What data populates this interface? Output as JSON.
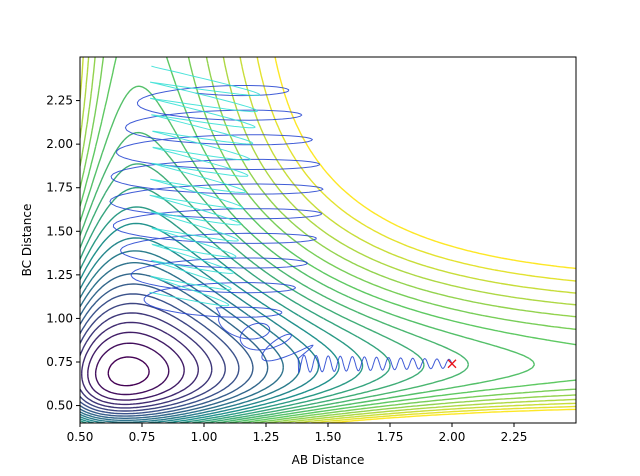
{
  "chart_data": {
    "type": "contour",
    "title": "",
    "xlabel": "AB Distance",
    "ylabel": "BC Distance",
    "xlim": [
      0.5,
      2.5
    ],
    "ylim": [
      0.4,
      2.5
    ],
    "xticks": [
      "0.50",
      "0.75",
      "1.00",
      "1.25",
      "1.50",
      "1.75",
      "2.00",
      "2.25"
    ],
    "yticks": [
      "0.50",
      "0.75",
      "1.00",
      "1.25",
      "1.50",
      "1.75",
      "2.00",
      "2.25"
    ],
    "colormap": [
      "#440154",
      "#3b528b",
      "#21918c",
      "#5ec962",
      "#fde725"
    ],
    "contour_levels": 25,
    "trajectory": {
      "start": {
        "x": 2.0,
        "y": 0.74
      },
      "marker": "x",
      "marker_color": "#e8141c",
      "line_color": "#1f3fd0"
    },
    "grid": false
  }
}
